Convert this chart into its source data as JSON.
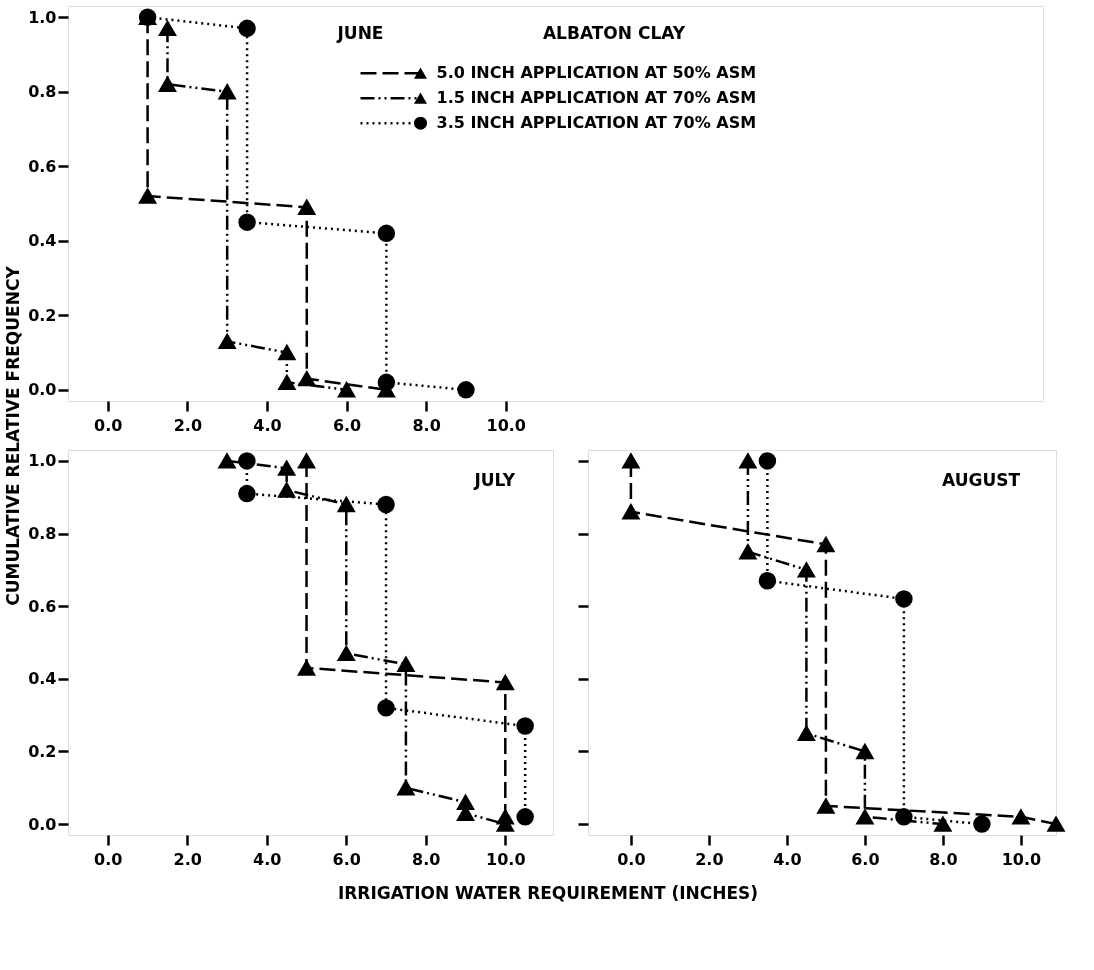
{
  "chart_data": [
    {
      "type": "line",
      "title": "JUNE",
      "ylabel": "CUMULATIVE RELATIVE FREQUENCY",
      "annotations": [
        "ALBATON CLAY"
      ],
      "legend": "top right",
      "grid": false,
      "xlim": [
        -1.0,
        23.5
      ],
      "ylim": [
        -0.03,
        1.03
      ],
      "xticks": [
        {
          "value": 0,
          "label": "0.0"
        },
        {
          "value": 2,
          "label": "2.0"
        },
        {
          "value": 4,
          "label": "4.0"
        },
        {
          "value": 6,
          "label": "6.0"
        },
        {
          "value": 8,
          "label": "8.0"
        },
        {
          "value": 10,
          "label": "10.0"
        }
      ],
      "yticks": [
        {
          "value": 0,
          "label": "0.0"
        },
        {
          "value": 0.2,
          "label": "0.2"
        },
        {
          "value": 0.4,
          "label": "0.4"
        },
        {
          "value": 0.6,
          "label": "0.6"
        },
        {
          "value": 0.8,
          "label": "0.8"
        },
        {
          "value": 1,
          "label": "1.0"
        }
      ],
      "series": [
        {
          "name": "5.0 INCH APPLICATION AT 50% ASM",
          "color": "#000000",
          "marker": "triangle",
          "line_style": "dashed",
          "x": [
            1.0,
            1.0,
            5.0,
            5.0,
            7.0
          ],
          "values": [
            1.0,
            0.52,
            0.49,
            0.03,
            0.0
          ]
        },
        {
          "name": "1.5 INCH APPLICATION AT 70% ASM",
          "color": "#000000",
          "marker": "triangle",
          "line_style": "dashdot",
          "x": [
            1.5,
            1.5,
            3.0,
            3.0,
            4.5,
            4.5,
            6.0
          ],
          "values": [
            0.97,
            0.82,
            0.8,
            0.13,
            0.1,
            0.02,
            0.0
          ]
        },
        {
          "name": "3.5 INCH APPLICATION AT 70% ASM",
          "color": "#000000",
          "marker": "circle",
          "line_style": "dotted",
          "x": [
            1.0,
            3.5,
            3.5,
            7.0,
            7.0,
            9.0
          ],
          "values": [
            1.0,
            0.97,
            0.45,
            0.42,
            0.02,
            0.0
          ]
        }
      ]
    },
    {
      "type": "line",
      "title": "JULY",
      "xlabel": "IRRIGATION WATER REQUIREMENT (INCHES)",
      "grid": false,
      "xlim": [
        -1.0,
        11.2
      ],
      "ylim": [
        -0.03,
        1.03
      ],
      "xticks": [
        {
          "value": 0,
          "label": "0.0"
        },
        {
          "value": 2,
          "label": "2.0"
        },
        {
          "value": 4,
          "label": "4.0"
        },
        {
          "value": 6,
          "label": "6.0"
        },
        {
          "value": 8,
          "label": "8.0"
        },
        {
          "value": 10,
          "label": "10.0"
        }
      ],
      "yticks": [
        {
          "value": 0,
          "label": "0.0"
        },
        {
          "value": 0.2,
          "label": "0.2"
        },
        {
          "value": 0.4,
          "label": "0.4"
        },
        {
          "value": 0.6,
          "label": "0.6"
        },
        {
          "value": 0.8,
          "label": "0.8"
        },
        {
          "value": 1,
          "label": "1.0"
        }
      ],
      "series": [
        {
          "color": "#000000",
          "marker": "triangle",
          "line_style": "dashed",
          "x": [
            5.0,
            5.0,
            10.0,
            10.0
          ],
          "values": [
            1.0,
            0.43,
            0.39,
            0.02
          ]
        },
        {
          "color": "#000000",
          "marker": "triangle",
          "line_style": "dashdot",
          "x": [
            3.0,
            4.5,
            4.5,
            6.0,
            6.0,
            7.5,
            7.5,
            9.0,
            9.0,
            10.0
          ],
          "values": [
            1.0,
            0.98,
            0.92,
            0.88,
            0.47,
            0.44,
            0.1,
            0.06,
            0.03,
            0.0
          ]
        },
        {
          "color": "#000000",
          "marker": "circle",
          "line_style": "dotted",
          "x": [
            3.5,
            3.5,
            7.0,
            7.0,
            10.5,
            10.5
          ],
          "values": [
            1.0,
            0.91,
            0.88,
            0.32,
            0.27,
            0.02
          ]
        }
      ]
    },
    {
      "type": "line",
      "title": "AUGUST",
      "grid": false,
      "tick_labels": "x",
      "xlim": [
        -1.1,
        10.9
      ],
      "ylim": [
        -0.03,
        1.03
      ],
      "xticks": [
        {
          "value": 0,
          "label": "0.0"
        },
        {
          "value": 2,
          "label": "2.0"
        },
        {
          "value": 4,
          "label": "4.0"
        },
        {
          "value": 6,
          "label": "6.0"
        },
        {
          "value": 8,
          "label": "8.0"
        },
        {
          "value": 10,
          "label": "10.0"
        }
      ],
      "yticks": [
        {
          "value": 0,
          "label": null
        },
        {
          "value": 0.2,
          "label": null
        },
        {
          "value": 0.4,
          "label": null
        },
        {
          "value": 0.6,
          "label": null
        },
        {
          "value": 0.8,
          "label": null
        },
        {
          "value": 1,
          "label": null
        }
      ],
      "series": [
        {
          "color": "#000000",
          "marker": "triangle",
          "line_style": "dashed",
          "x": [
            0.0,
            0.0,
            5.0,
            5.0,
            10.0,
            10.9
          ],
          "values": [
            1.0,
            0.86,
            0.77,
            0.05,
            0.02,
            0.0
          ]
        },
        {
          "color": "#000000",
          "marker": "triangle",
          "line_style": "dashdot",
          "x": [
            3.0,
            3.0,
            4.5,
            4.5,
            6.0,
            6.0,
            8.0
          ],
          "values": [
            1.0,
            0.75,
            0.7,
            0.25,
            0.2,
            0.02,
            0.0
          ]
        },
        {
          "color": "#000000",
          "marker": "circle",
          "line_style": "dotted",
          "x": [
            3.5,
            3.5,
            7.0,
            7.0,
            9.0
          ],
          "values": [
            1.0,
            0.67,
            0.62,
            0.02,
            0.0
          ]
        }
      ]
    }
  ]
}
